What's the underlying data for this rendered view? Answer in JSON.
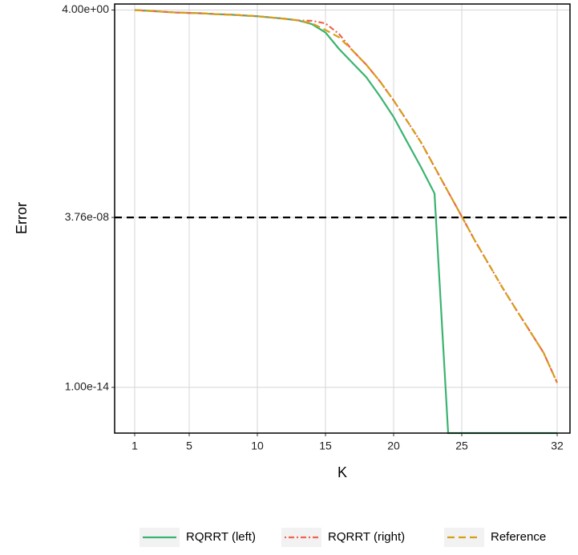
{
  "chart_data": {
    "type": "line",
    "x_label": "K",
    "y_label": "Error",
    "x": [
      1,
      2,
      3,
      4,
      5,
      6,
      7,
      8,
      9,
      10,
      11,
      12,
      13,
      14,
      15,
      16,
      17,
      18,
      19,
      20,
      21,
      22,
      23,
      24,
      25,
      26,
      27,
      28,
      29,
      30,
      31,
      32
    ],
    "series": [
      {
        "name": "RQRRT (left)",
        "color": "#3cb371",
        "dash": "solid",
        "values": [
          4.0,
          3.72,
          3.45,
          3.21,
          3.09,
          2.98,
          2.76,
          2.66,
          2.47,
          2.3,
          2.06,
          1.84,
          1.59,
          1.14,
          0.54,
          0.124,
          0.0352,
          0.01,
          0.00183,
          0.00029,
          3.1e-05,
          3.4e-06,
          3.2e-07,
          1.7e-16,
          1.7e-16,
          1.7e-16,
          1.7e-16,
          1.7e-16,
          1.7e-16,
          1.7e-16,
          1.7e-16,
          1.7e-16
        ]
      },
      {
        "name": "RQRRT (right)",
        "color": "#f0654f",
        "dash": "dotdash",
        "values": [
          4.0,
          3.72,
          3.45,
          3.21,
          3.09,
          2.98,
          2.76,
          2.66,
          2.47,
          2.3,
          2.06,
          1.84,
          1.59,
          1.53,
          1.22,
          0.47,
          0.107,
          0.0304,
          0.0069,
          0.00127,
          0.0002,
          3.1e-05,
          3.4e-06,
          3.7e-07,
          4.1e-08,
          4.4e-09,
          5.6e-10,
          7e-11,
          1e-11,
          1.5e-12,
          2.2e-13,
          1.5e-14
        ]
      },
      {
        "name": "Reference",
        "color": "#d4a017",
        "dash": "dashed",
        "values": [
          4.0,
          3.72,
          3.45,
          3.21,
          3.09,
          2.98,
          2.76,
          2.66,
          2.47,
          2.3,
          2.06,
          1.84,
          1.59,
          1.22,
          0.68,
          0.35,
          0.107,
          0.0304,
          0.0069,
          0.00127,
          0.0002,
          3.1e-05,
          3.4e-06,
          3.7e-07,
          4.1e-08,
          4.4e-09,
          5.6e-10,
          7e-11,
          1e-11,
          1.5e-12,
          2.2e-13,
          1.5e-14
        ]
      }
    ],
    "hline": 3.76e-08,
    "hline_color": "#000000",
    "xlim": [
      -0.47,
      32.94
    ],
    "xticks": [
      1,
      5,
      10,
      15,
      20,
      25,
      32
    ],
    "ylim": [
      1.7e-16,
      6.84
    ],
    "yticks": [
      {
        "value": 4.0,
        "label": "4.00e+00"
      },
      {
        "value": 3.76e-08,
        "label": "3.76e-08"
      },
      {
        "value": 1e-14,
        "label": "1.00e-14"
      }
    ],
    "y_log": true,
    "grid": true,
    "legend_position": "bottom"
  }
}
